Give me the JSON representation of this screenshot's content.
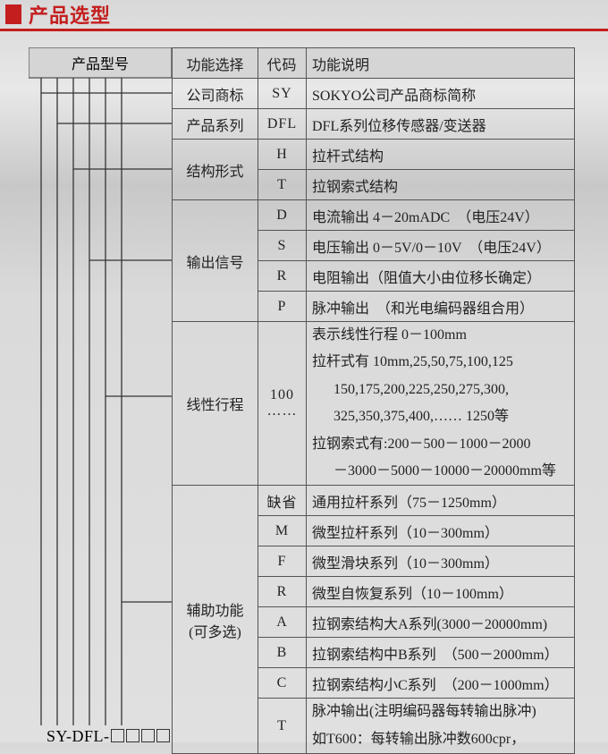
{
  "header": {
    "title": "产品选型"
  },
  "model_prefix": "SY-DFL-",
  "table": {
    "headers": {
      "model": "产品型号",
      "func": "功能选择",
      "code": "代码",
      "desc": "功能说明"
    },
    "groups": [
      {
        "func": "公司商标",
        "rows": [
          {
            "code": "SY",
            "desc": "SOKYO公司产品商标简称"
          }
        ]
      },
      {
        "func": "产品系列",
        "rows": [
          {
            "code": "DFL",
            "desc": "DFL系列位移传感器/变送器"
          }
        ]
      },
      {
        "func": "结构形式",
        "rows": [
          {
            "code": "H",
            "desc": "拉杆式结构"
          },
          {
            "code": "T",
            "desc": "拉钢索式结构"
          }
        ]
      },
      {
        "func": "输出信号",
        "rows": [
          {
            "code": "D",
            "desc": "电流输出 4－20mADC　（电压24V）"
          },
          {
            "code": "S",
            "desc": "电压输出 0－5V/0－10V　（电压24V）"
          },
          {
            "code": "R",
            "desc": "电阻输出（阻值大小由位移长确定）"
          },
          {
            "code": "P",
            "desc": "脉冲输出　（和光电编码器组合用）"
          }
        ]
      },
      {
        "func": "线性行程",
        "rows": [
          {
            "code": "100\n……",
            "desc_lines": [
              "表示线性行程 0－100mm",
              "拉杆式有 10mm,25,50,75,100,125",
              "　150,175,200,225,250,275,300,",
              "　325,350,375,400,…… 1250等",
              "拉钢索式有:200－500－1000－2000",
              "　－3000－5000－10000－20000mm等"
            ]
          }
        ]
      },
      {
        "func": "辅助功能\n(可多选)",
        "rows": [
          {
            "code": "缺省",
            "desc": "通用拉杆系列（75－1250mm）"
          },
          {
            "code": "M",
            "desc": "微型拉杆系列（10－300mm）"
          },
          {
            "code": "F",
            "desc": "微型滑块系列（10－300mm）"
          },
          {
            "code": "R",
            "desc": "微型自恢复系列（10－100mm）"
          },
          {
            "code": "A",
            "desc": "拉钢索结构大A系列(3000－20000mm)"
          },
          {
            "code": "B",
            "desc": "拉钢索结构中B系列　（500－2000mm）"
          },
          {
            "code": "C",
            "desc": "拉钢索结构小C系列　（200－1000mm）"
          },
          {
            "code": "T",
            "desc_lines": [
              "脉冲输出(注明编码器每转输出脉冲)",
              "如T600：每转输出脉冲数600cpr，"
            ]
          }
        ]
      }
    ]
  },
  "colors": {
    "accent": "#c41e1e",
    "border": "#555555",
    "header_bg": "#d5d5d5",
    "text": "#222222"
  }
}
